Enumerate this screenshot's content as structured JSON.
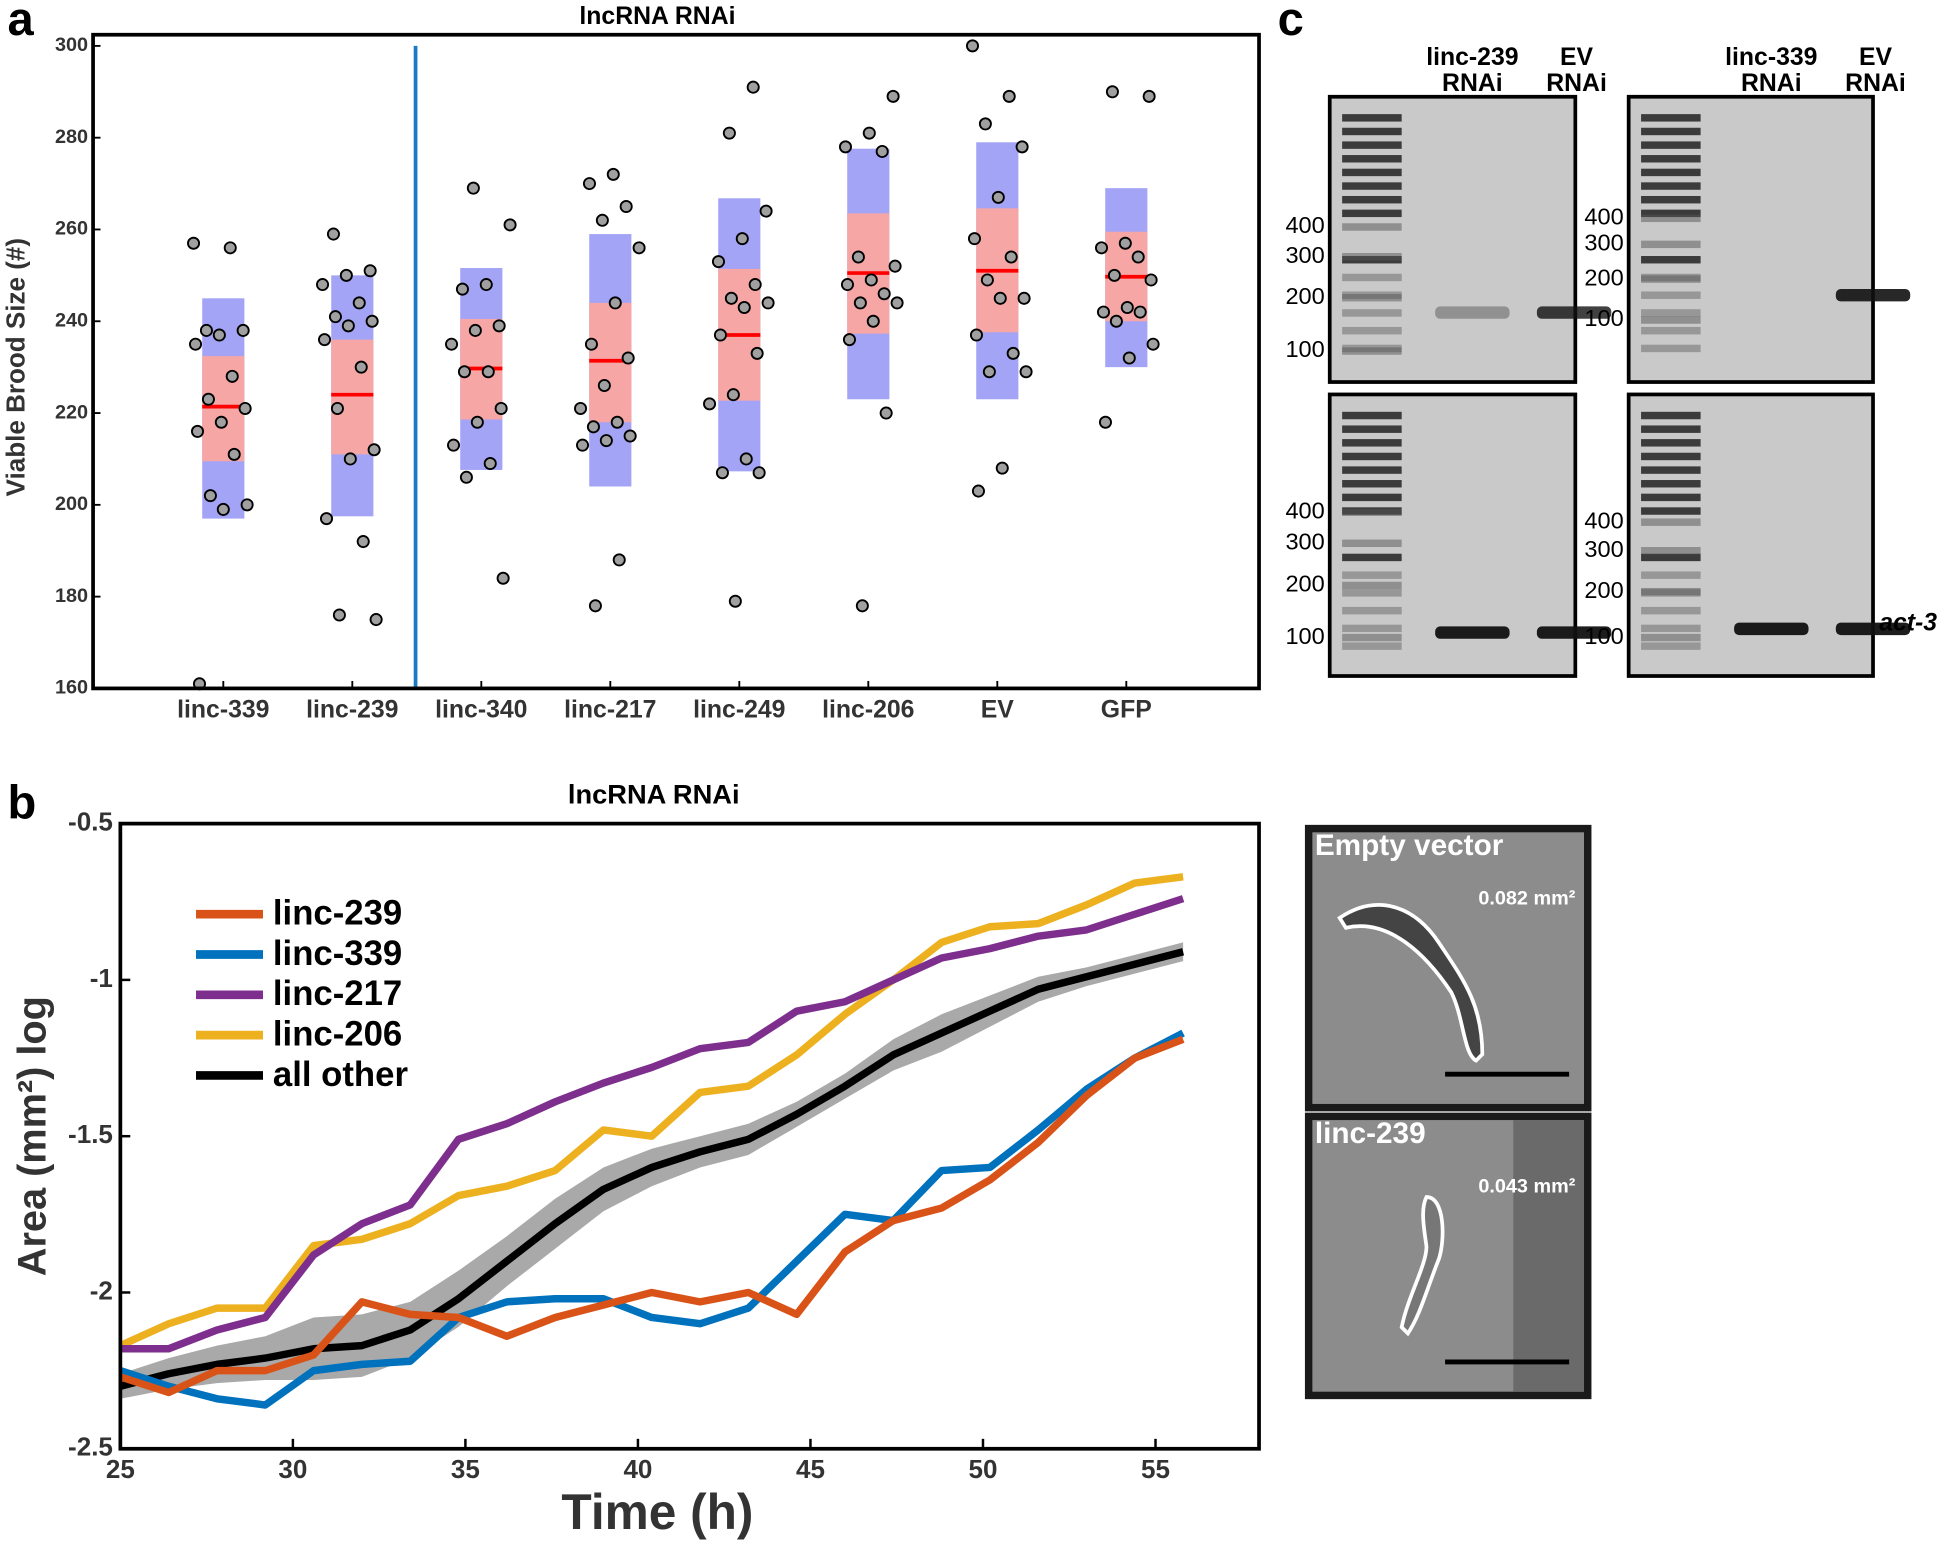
{
  "panels": [
    "a",
    "b",
    "c"
  ],
  "chart_data": [
    {
      "type": "box",
      "title": "lncRNA RNAi",
      "ylabel": "Viable Brood Size (#)",
      "categories": [
        "linc-339",
        "linc-239",
        "linc-340",
        "linc-217",
        "linc-249",
        "linc-206",
        "EV",
        "GFP"
      ],
      "ylim": [
        160,
        300
      ],
      "yticks": [
        160,
        180,
        200,
        220,
        240,
        260,
        280,
        300
      ],
      "mean": [
        221.4,
        224,
        229.7,
        231.4,
        237,
        250.5,
        251,
        249.7
      ],
      "inner_low": [
        209.5,
        211,
        218.6,
        218,
        222.7,
        237.3,
        237.6,
        240
      ],
      "inner_high": [
        232.4,
        236,
        240.5,
        244,
        251.4,
        263.5,
        264.6,
        259.5
      ],
      "outer_low": [
        197,
        197.5,
        207.6,
        204,
        207.3,
        223,
        223,
        230
      ],
      "outer_high": [
        245,
        250,
        251.6,
        259,
        266.8,
        277.6,
        279,
        269
      ],
      "points": [
        [
          257,
          256,
          238,
          238,
          237,
          235,
          228,
          223,
          221,
          218,
          216,
          211,
          202,
          200,
          199,
          161
        ],
        [
          259,
          251,
          250,
          248,
          244,
          241,
          240,
          239,
          236,
          230,
          221,
          212,
          210,
          197,
          192,
          176,
          175
        ],
        [
          269,
          261,
          248,
          247,
          239,
          238,
          235,
          229,
          229,
          221,
          218,
          213,
          209,
          206,
          184
        ],
        [
          272,
          270,
          265,
          262,
          256,
          244,
          235,
          232,
          226,
          221,
          218,
          217,
          215,
          214,
          213,
          188,
          178
        ],
        [
          291,
          281,
          264,
          258,
          253,
          248,
          245,
          244,
          243,
          237,
          233,
          224,
          222,
          210,
          207,
          207,
          179
        ],
        [
          289,
          281,
          278,
          277,
          254,
          252,
          249,
          248,
          246,
          244,
          244,
          240,
          236,
          220,
          178
        ],
        [
          300,
          289,
          283,
          278,
          267,
          258,
          254,
          249,
          245,
          245,
          237,
          233,
          229,
          229,
          208,
          203
        ],
        [
          290,
          289,
          257,
          256,
          254,
          250,
          249,
          243,
          242,
          242,
          240,
          235,
          232,
          218
        ]
      ],
      "mean_color": "#ff0000",
      "inner_color": "#f7a6a6",
      "outer_color": "#a4a4f6",
      "point_color": "#a0a0a0"
    },
    {
      "type": "line",
      "title": "lncRNA RNAi",
      "xlabel": "Time (h)",
      "ylabel": "Area (mm²) log",
      "x": [
        25,
        26.4,
        27.8,
        29.2,
        30.6,
        32,
        33.4,
        34.8,
        36.2,
        37.6,
        39,
        40.4,
        41.8,
        43.2,
        44.6,
        46,
        47.4,
        48.8,
        50.2,
        51.6,
        53,
        54.4,
        55.8
      ],
      "xlim": [
        25,
        58
      ],
      "xticks": [
        25,
        30,
        35,
        40,
        45,
        50,
        55
      ],
      "ylim": [
        -2.5,
        -0.5
      ],
      "yticks": [
        -2.5,
        -2,
        -1.5,
        -1,
        -0.5
      ],
      "legend": "upper-left",
      "series": [
        {
          "name": "linc-239",
          "color": "#d95319",
          "values": [
            -2.27,
            -2.32,
            -2.25,
            -2.25,
            -2.2,
            -2.03,
            -2.07,
            -2.08,
            -2.14,
            -2.08,
            -2.04,
            -2.0,
            -2.03,
            -2.0,
            -2.07,
            -1.87,
            -1.77,
            -1.73,
            -1.64,
            -1.52,
            -1.37,
            -1.25,
            -1.19
          ]
        },
        {
          "name": "linc-339",
          "color": "#0072bd",
          "values": [
            -2.25,
            -2.3,
            -2.34,
            -2.36,
            -2.25,
            -2.23,
            -2.22,
            -2.08,
            -2.03,
            -2.02,
            -2.02,
            -2.08,
            -2.1,
            -2.05,
            -1.9,
            -1.75,
            -1.77,
            -1.61,
            -1.6,
            -1.48,
            -1.35,
            -1.25,
            -1.17
          ]
        },
        {
          "name": "linc-217",
          "color": "#7e2f8e",
          "values": [
            -2.18,
            -2.18,
            -2.12,
            -2.08,
            -1.88,
            -1.78,
            -1.72,
            -1.51,
            -1.46,
            -1.39,
            -1.33,
            -1.28,
            -1.22,
            -1.2,
            -1.1,
            -1.07,
            -1.0,
            -0.93,
            -0.9,
            -0.86,
            -0.84,
            -0.79,
            -0.74
          ]
        },
        {
          "name": "linc-206",
          "color": "#edb120",
          "values": [
            -2.17,
            -2.1,
            -2.05,
            -2.05,
            -1.85,
            -1.83,
            -1.78,
            -1.69,
            -1.66,
            -1.61,
            -1.48,
            -1.5,
            -1.36,
            -1.34,
            -1.24,
            -1.11,
            -1.0,
            -0.88,
            -0.83,
            -0.82,
            -0.76,
            -0.69,
            -0.67
          ]
        },
        {
          "name": "all other",
          "color": "#000000",
          "band_color": "#a0a0a0",
          "values": [
            -2.3,
            -2.26,
            -2.23,
            -2.21,
            -2.18,
            -2.17,
            -2.12,
            -2.02,
            -1.9,
            -1.78,
            -1.67,
            -1.6,
            -1.55,
            -1.51,
            -1.43,
            -1.34,
            -1.24,
            -1.17,
            -1.1,
            -1.03,
            -0.99,
            -0.95,
            -0.91
          ],
          "lower": [
            -2.34,
            -2.31,
            -2.29,
            -2.28,
            -2.28,
            -2.27,
            -2.21,
            -2.11,
            -1.98,
            -1.86,
            -1.74,
            -1.66,
            -1.6,
            -1.56,
            -1.47,
            -1.38,
            -1.29,
            -1.23,
            -1.15,
            -1.07,
            -1.02,
            -0.98,
            -0.94
          ],
          "upper": [
            -2.26,
            -2.21,
            -2.17,
            -2.14,
            -2.08,
            -2.07,
            -2.03,
            -1.93,
            -1.82,
            -1.7,
            -1.6,
            -1.54,
            -1.5,
            -1.46,
            -1.39,
            -1.3,
            -1.19,
            -1.11,
            -1.05,
            -0.99,
            -0.96,
            -0.92,
            -0.88
          ]
        }
      ]
    }
  ],
  "gels": [
    {
      "lanes": [
        [
          "linc-239",
          "RNAi"
        ],
        [
          "EV",
          "RNAi"
        ]
      ],
      "ladder": [
        "400",
        "300",
        "200",
        "100"
      ]
    },
    {
      "lanes": [
        [
          "linc-339",
          "RNAi"
        ],
        [
          "EV",
          "RNAi"
        ]
      ],
      "ladder": [
        "400",
        "300",
        "200",
        "100"
      ]
    },
    {
      "ladder": [
        "400",
        "300",
        "200",
        "100"
      ]
    },
    {
      "ladder": [
        "400",
        "300",
        "200",
        "100"
      ],
      "gene": "act-3"
    }
  ],
  "micrographs": [
    {
      "label": "Empty vector",
      "area": "0.082 mm²"
    },
    {
      "label": "linc-239",
      "area": "0.043 mm²"
    }
  ]
}
